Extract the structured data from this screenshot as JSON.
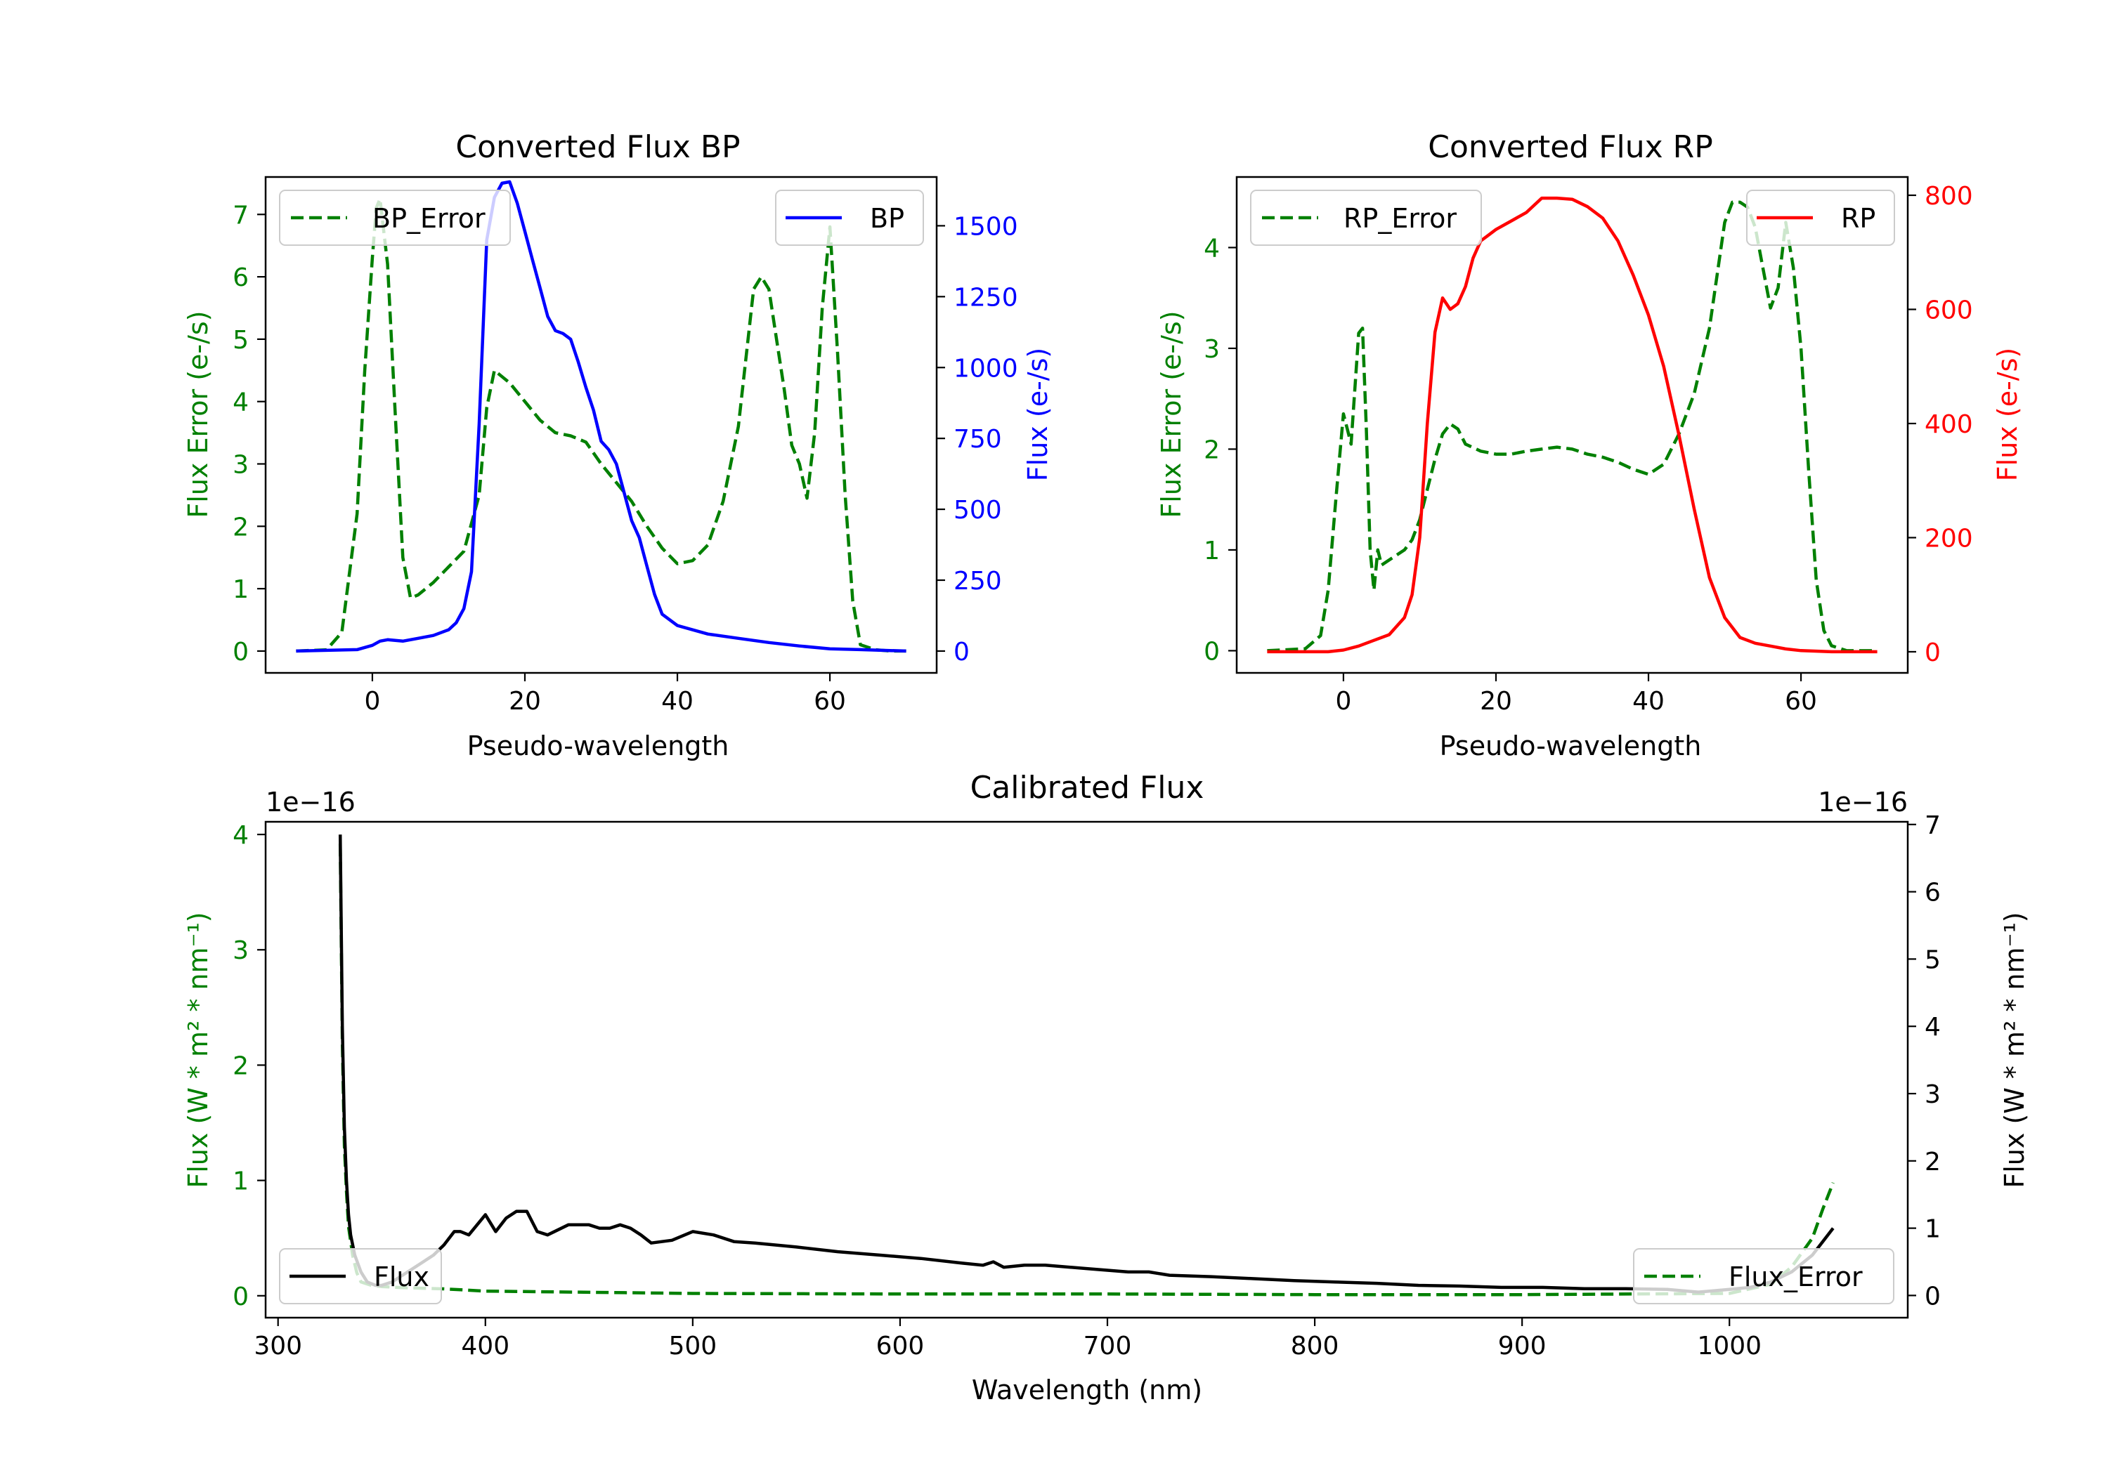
{
  "chart_data": [
    {
      "type": "line",
      "title": "Converted Flux BP",
      "xlabel": "Pseudo-wavelength",
      "xlim": [
        -14,
        74
      ],
      "xticks": [
        0,
        20,
        40,
        60
      ],
      "left_axis": {
        "label": "Flux Error (e-/s)",
        "ylim": [
          -0.35,
          7.6
        ],
        "ticks": [
          0,
          1,
          2,
          3,
          4,
          5,
          6,
          7
        ],
        "color": "#008000"
      },
      "right_axis": {
        "label": "Flux (e-/s)",
        "ylim": [
          -77,
          1672
        ],
        "ticks": [
          0,
          250,
          500,
          750,
          1000,
          1250,
          1500
        ],
        "color": "#0000ff"
      },
      "series": [
        {
          "name": "BP_Error",
          "axis": "left",
          "color": "#008000",
          "dash": true,
          "x": [
            -10,
            -6,
            -4,
            -2,
            -1,
            0,
            0.5,
            1,
            2,
            3,
            4,
            5,
            6,
            8,
            10,
            12,
            14,
            15,
            16,
            17,
            18,
            20,
            22,
            24,
            26,
            28,
            30,
            32,
            34,
            36,
            38,
            40,
            42,
            44,
            46,
            48,
            50,
            51,
            52,
            53,
            54,
            55,
            56,
            57,
            58,
            59,
            60,
            61,
            62,
            63,
            64,
            66,
            68,
            70
          ],
          "values": [
            0,
            0.02,
            0.3,
            2.2,
            4.5,
            6.3,
            7.1,
            7.25,
            6.2,
            3.8,
            1.5,
            0.85,
            0.9,
            1.1,
            1.35,
            1.6,
            2.5,
            3.9,
            4.5,
            4.4,
            4.3,
            4.0,
            3.7,
            3.5,
            3.45,
            3.35,
            3.0,
            2.7,
            2.4,
            2.0,
            1.65,
            1.4,
            1.45,
            1.7,
            2.4,
            3.6,
            5.8,
            6.0,
            5.8,
            5.0,
            4.2,
            3.3,
            3.0,
            2.45,
            3.5,
            5.5,
            6.8,
            4.8,
            2.5,
            0.8,
            0.1,
            0.02,
            0,
            0
          ]
        },
        {
          "name": "BP",
          "axis": "right",
          "color": "#0000ff",
          "dash": false,
          "x": [
            -10,
            -2,
            0,
            1,
            2,
            4,
            6,
            8,
            10,
            11,
            12,
            13,
            14,
            15,
            16,
            17,
            18,
            19,
            20,
            21,
            22,
            23,
            24,
            25,
            26,
            27,
            28,
            29,
            30,
            31,
            32,
            33,
            34,
            35,
            36,
            37,
            38,
            40,
            44,
            48,
            52,
            56,
            60,
            64,
            70
          ],
          "values": [
            0,
            5,
            20,
            35,
            40,
            35,
            45,
            55,
            75,
            100,
            150,
            280,
            800,
            1450,
            1600,
            1650,
            1655,
            1580,
            1480,
            1380,
            1280,
            1180,
            1130,
            1120,
            1100,
            1020,
            930,
            850,
            740,
            710,
            660,
            560,
            460,
            400,
            300,
            200,
            130,
            90,
            60,
            45,
            30,
            18,
            8,
            5,
            0
          ]
        }
      ],
      "legends": [
        {
          "label": "BP_Error",
          "position": "upper-left"
        },
        {
          "label": "BP",
          "position": "upper-right"
        }
      ]
    },
    {
      "type": "line",
      "title": "Converted Flux RP",
      "xlabel": "Pseudo-wavelength",
      "xlim": [
        -14,
        74
      ],
      "xticks": [
        0,
        20,
        40,
        60
      ],
      "left_axis": {
        "label": "Flux Error (e-/s)",
        "ylim": [
          -0.22,
          4.7
        ],
        "ticks": [
          0,
          1,
          2,
          3,
          4
        ],
        "color": "#008000"
      },
      "right_axis": {
        "label": "Flux (e-/s)",
        "ylim": [
          -37,
          832
        ],
        "ticks": [
          0,
          200,
          400,
          600,
          800
        ],
        "color": "#ff0000"
      },
      "series": [
        {
          "name": "RP_Error",
          "axis": "left",
          "color": "#008000",
          "dash": true,
          "x": [
            -10,
            -5,
            -3,
            -2,
            -1,
            0,
            0.5,
            1,
            1.5,
            2,
            2.5,
            3,
            3.5,
            4,
            4.5,
            5,
            6,
            7,
            8,
            9,
            10,
            11,
            12,
            13,
            14,
            15,
            16,
            18,
            20,
            22,
            24,
            26,
            28,
            30,
            32,
            34,
            36,
            38,
            40,
            42,
            44,
            46,
            48,
            50,
            51,
            52,
            53,
            54,
            55,
            56,
            57,
            58,
            59,
            60,
            61,
            62,
            63,
            64,
            66,
            70
          ],
          "values": [
            0,
            0.02,
            0.15,
            0.6,
            1.5,
            2.35,
            2.2,
            2.05,
            2.6,
            3.15,
            3.2,
            2.2,
            1.0,
            0.6,
            1.0,
            0.85,
            0.9,
            0.95,
            1.0,
            1.1,
            1.3,
            1.6,
            1.9,
            2.15,
            2.25,
            2.2,
            2.05,
            1.98,
            1.95,
            1.95,
            1.98,
            2.0,
            2.02,
            2.0,
            1.95,
            1.92,
            1.87,
            1.8,
            1.75,
            1.85,
            2.15,
            2.55,
            3.2,
            4.25,
            4.45,
            4.45,
            4.4,
            4.2,
            3.8,
            3.4,
            3.6,
            4.25,
            3.8,
            3.0,
            1.8,
            0.7,
            0.2,
            0.05,
            0,
            0
          ]
        },
        {
          "name": "RP",
          "axis": "right",
          "color": "#ff0000",
          "dash": false,
          "x": [
            -10,
            -2,
            0,
            2,
            4,
            6,
            8,
            9,
            10,
            11,
            12,
            13,
            14,
            15,
            16,
            17,
            18,
            19,
            20,
            22,
            24,
            26,
            28,
            30,
            32,
            34,
            36,
            38,
            40,
            42,
            44,
            46,
            48,
            50,
            52,
            54,
            56,
            58,
            60,
            64,
            70
          ],
          "values": [
            0,
            0,
            3,
            10,
            20,
            30,
            60,
            100,
            200,
            400,
            560,
            620,
            600,
            610,
            640,
            690,
            720,
            730,
            740,
            755,
            770,
            795,
            795,
            793,
            780,
            760,
            720,
            660,
            590,
            500,
            380,
            250,
            130,
            60,
            25,
            15,
            10,
            5,
            2,
            0,
            0
          ]
        }
      ],
      "legends": [
        {
          "label": "RP_Error",
          "position": "upper-left"
        },
        {
          "label": "RP",
          "position": "upper-right"
        }
      ]
    },
    {
      "type": "line",
      "title": "Calibrated Flux",
      "xlabel": "Wavelength (nm)",
      "xlim": [
        294,
        1086
      ],
      "xticks": [
        300,
        400,
        500,
        600,
        700,
        800,
        900,
        1000
      ],
      "left_axis": {
        "label": "Flux (W * m² * nm⁻¹)",
        "ylim": [
          -0.19,
          4.11
        ],
        "ticks": [
          0,
          1,
          2,
          3,
          4
        ],
        "offset": "1e−16",
        "color": "#008000"
      },
      "right_axis": {
        "label": "Flux (W * m² * nm⁻¹)",
        "ylim": [
          -0.33,
          7.04
        ],
        "ticks": [
          0,
          1,
          2,
          3,
          4,
          5,
          6,
          7
        ],
        "offset": "1e−16",
        "color": "#000000"
      },
      "series": [
        {
          "name": "Flux_Error",
          "axis": "left",
          "color": "#008000",
          "dash": true,
          "x": [
            330,
            331,
            332,
            333,
            334,
            336,
            338,
            340,
            345,
            350,
            360,
            380,
            400,
            500,
            600,
            700,
            800,
            900,
            1000,
            1020,
            1030,
            1040,
            1045,
            1050
          ],
          "values": [
            3.92,
            2.2,
            1.3,
            0.9,
            0.6,
            0.35,
            0.2,
            0.12,
            0.09,
            0.08,
            0.07,
            0.06,
            0.04,
            0.02,
            0.015,
            0.015,
            0.01,
            0.01,
            0.02,
            0.1,
            0.25,
            0.5,
            0.75,
            0.98
          ]
        },
        {
          "name": "Flux",
          "axis": "right",
          "color": "#000000",
          "dash": false,
          "x": [
            330,
            331,
            332,
            333,
            334,
            335,
            337,
            340,
            343,
            347,
            350,
            355,
            360,
            365,
            370,
            375,
            380,
            385,
            388,
            392,
            396,
            400,
            405,
            410,
            415,
            420,
            425,
            430,
            440,
            450,
            455,
            460,
            465,
            470,
            475,
            480,
            490,
            500,
            510,
            520,
            530,
            550,
            570,
            590,
            610,
            630,
            640,
            645,
            650,
            660,
            670,
            690,
            710,
            720,
            730,
            750,
            770,
            790,
            810,
            830,
            850,
            870,
            890,
            910,
            930,
            950,
            970,
            985,
            1000,
            1010,
            1020,
            1030,
            1040,
            1050
          ],
          "values": [
            6.85,
            4.0,
            2.5,
            1.7,
            1.2,
            0.9,
            0.6,
            0.35,
            0.2,
            0.15,
            0.15,
            0.2,
            0.3,
            0.4,
            0.5,
            0.6,
            0.75,
            0.95,
            0.95,
            0.9,
            1.05,
            1.2,
            0.95,
            1.15,
            1.25,
            1.25,
            0.95,
            0.9,
            1.05,
            1.05,
            1.0,
            1.0,
            1.05,
            1.0,
            0.9,
            0.78,
            0.82,
            0.95,
            0.9,
            0.8,
            0.78,
            0.72,
            0.65,
            0.6,
            0.55,
            0.48,
            0.45,
            0.5,
            0.42,
            0.45,
            0.45,
            0.4,
            0.35,
            0.35,
            0.3,
            0.28,
            0.25,
            0.22,
            0.2,
            0.18,
            0.15,
            0.14,
            0.12,
            0.12,
            0.1,
            0.1,
            0.09,
            0.05,
            0.09,
            0.12,
            0.2,
            0.35,
            0.6,
            1.0
          ]
        }
      ],
      "legends": [
        {
          "label": "Flux",
          "position": "lower-left"
        },
        {
          "label": "Flux_Error",
          "position": "lower-right"
        }
      ]
    }
  ]
}
